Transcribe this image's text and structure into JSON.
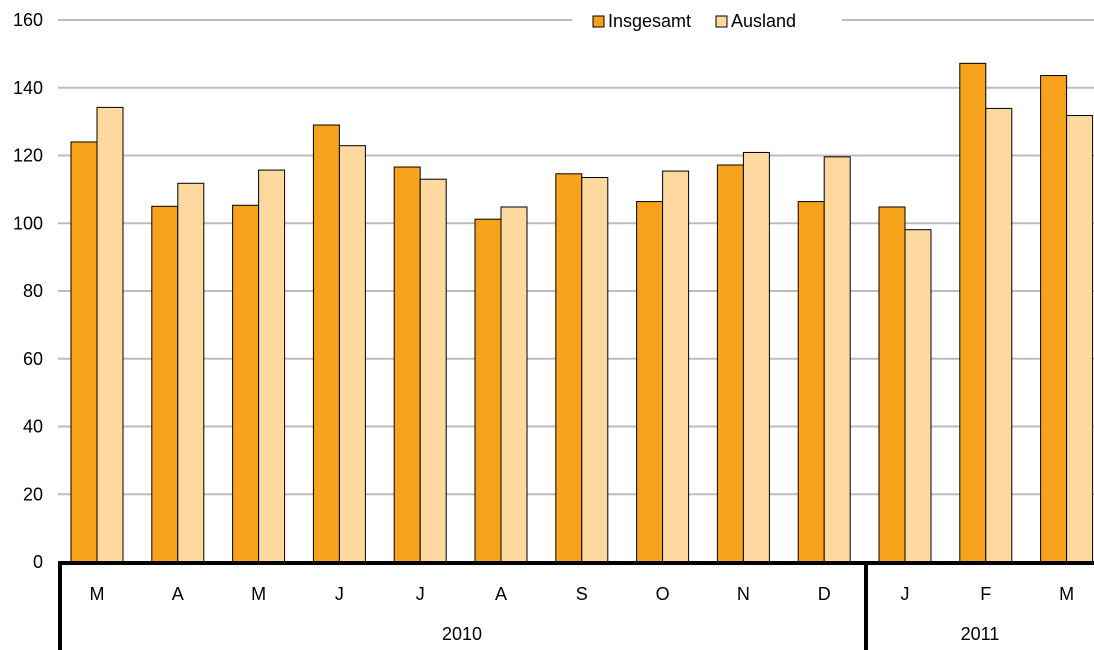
{
  "chart_data": {
    "type": "bar",
    "ylim": [
      0,
      160
    ],
    "yticks": [
      0,
      20,
      40,
      60,
      80,
      100,
      120,
      140,
      160
    ],
    "categories": [
      "M",
      "A",
      "M",
      "J",
      "J",
      "A",
      "S",
      "O",
      "N",
      "D",
      "J",
      "F",
      "M"
    ],
    "year_groups": [
      {
        "label": "2010",
        "count": 10
      },
      {
        "label": "2011",
        "count": 3
      }
    ],
    "series": [
      {
        "name": "Insgesamt",
        "color": "#f7a21b",
        "values": [
          124,
          105,
          105.3,
          129,
          116.6,
          101.2,
          114.6,
          106.4,
          117.2,
          106.4,
          104.8,
          147.2,
          143.6
        ]
      },
      {
        "name": "Ausland",
        "color": "#fdd9a0",
        "values": [
          134.2,
          111.8,
          115.7,
          122.9,
          113,
          104.8,
          113.5,
          115.4,
          120.9,
          119.6,
          98.1,
          133.9,
          131.8
        ]
      }
    ],
    "grid": true,
    "legend_position": "top-center"
  }
}
